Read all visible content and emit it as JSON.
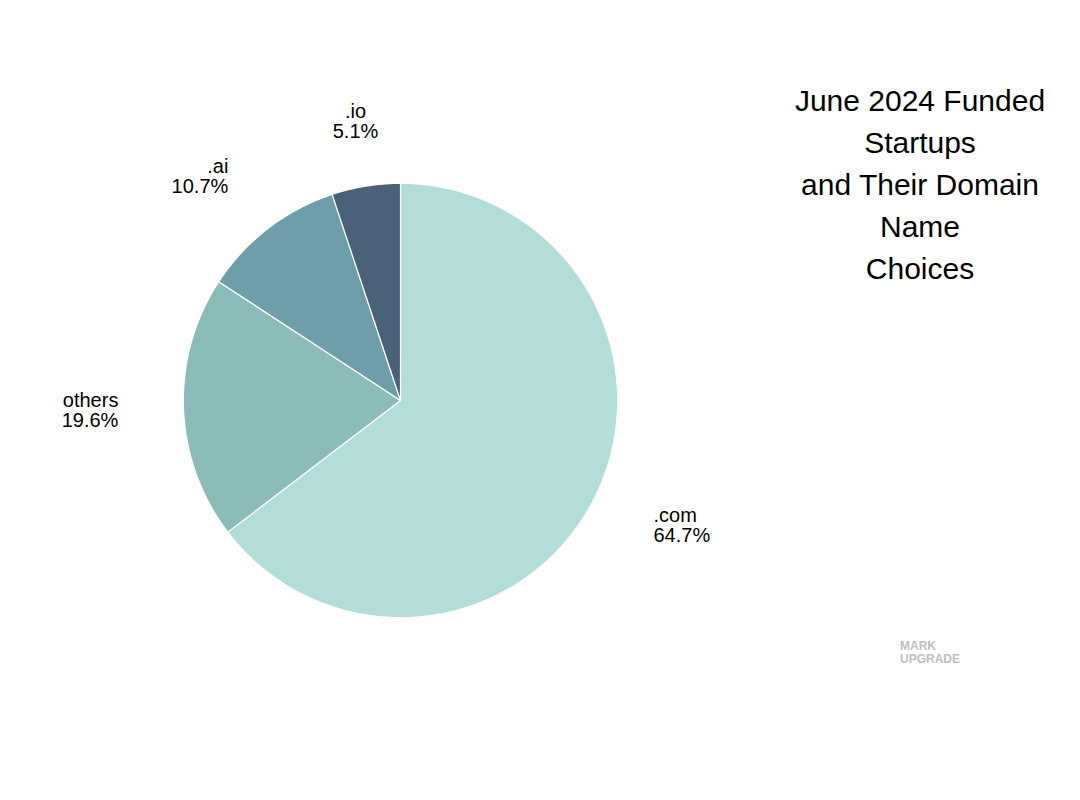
{
  "chart_data": {
    "type": "pie",
    "title": "June 2024 Funded Startups\nand Their Domain Name\nChoices",
    "categories": [
      ".com",
      "others",
      ".ai",
      ".io"
    ],
    "values": [
      64.7,
      19.6,
      10.7,
      5.1
    ],
    "value_labels": [
      "64.7%",
      "19.6%",
      "10.7%",
      "5.1%"
    ],
    "colors": [
      "#b2ddd8",
      "#8cbcb8",
      "#6e9eaa",
      "#4a6278"
    ],
    "data_labels": true,
    "annotations": [
      "MARK\nUPGRADE"
    ]
  }
}
